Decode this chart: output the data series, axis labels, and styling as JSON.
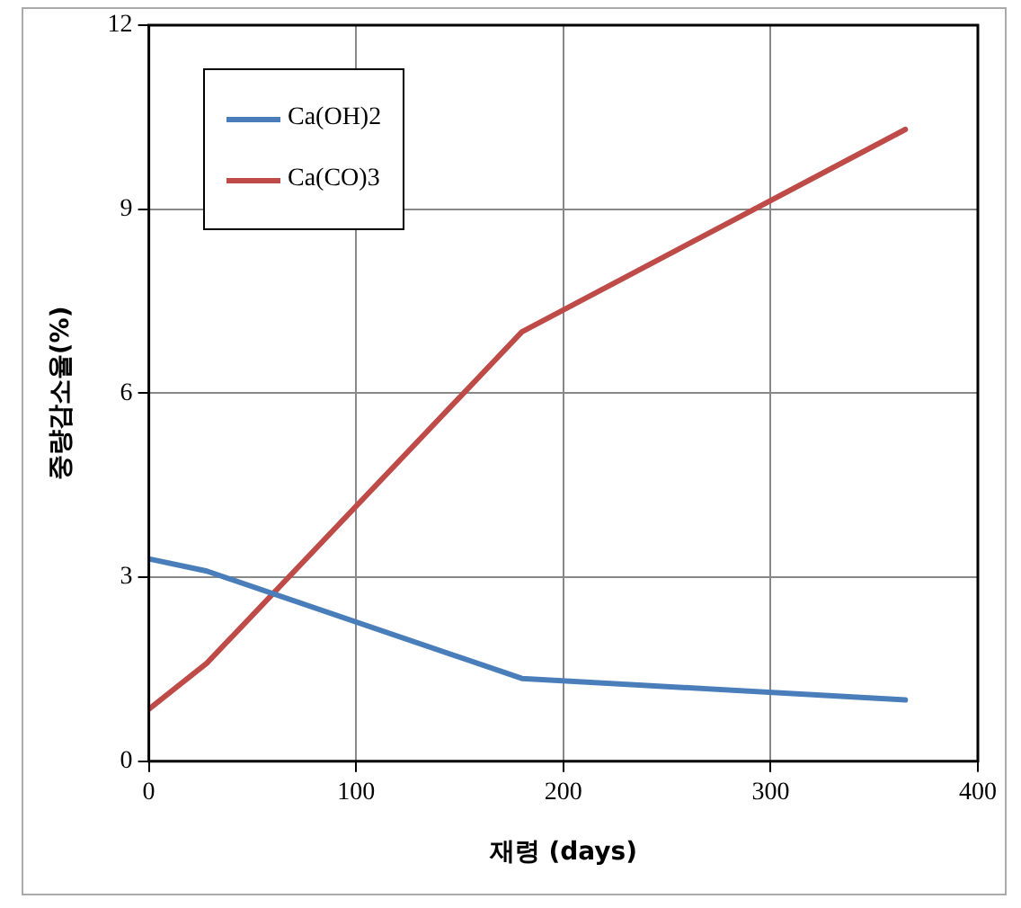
{
  "chart_data": {
    "type": "line",
    "xlabel": "재령 (days)",
    "ylabel": "중량감소율(%)",
    "x": [
      0,
      28,
      180,
      365
    ],
    "series": [
      {
        "name": "Ca(OH)2",
        "color": "#4a7ebb",
        "values": [
          3.3,
          3.1,
          1.35,
          1.0
        ]
      },
      {
        "name": "Ca(CO)3",
        "color": "#be4b48",
        "values": [
          0.85,
          1.6,
          7.0,
          10.3
        ]
      }
    ],
    "xlim": [
      0,
      400
    ],
    "xticks": [
      0,
      100,
      200,
      300,
      400
    ],
    "ylim": [
      0,
      12
    ],
    "yticks": [
      0,
      3,
      6,
      9,
      12
    ],
    "grid": true,
    "legend": "top left",
    "marker": "none",
    "line_style": "solid"
  }
}
